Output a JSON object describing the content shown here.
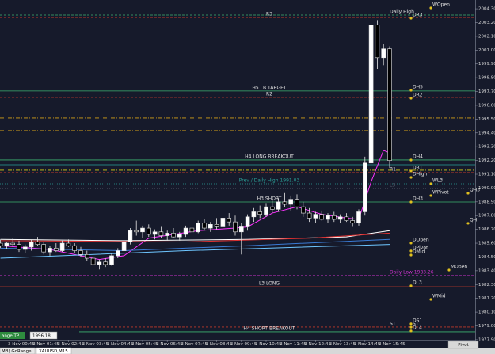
{
  "chart_data": {
    "type": "candlestick",
    "ylim": [
      1977.2,
      2005.0
    ],
    "yticks": [
      {
        "value": 2004.3,
        "label": "2004.30"
      },
      {
        "value": 2003.2,
        "label": "2003.20"
      },
      {
        "value": 2002.1,
        "label": "2002.10"
      },
      {
        "value": 2001,
        "label": "2001.00"
      },
      {
        "value": 1999.9,
        "label": "1999.90"
      },
      {
        "value": 1998.8,
        "label": "1998.80"
      },
      {
        "value": 1997.7,
        "label": "1997.70"
      },
      {
        "value": 1996.6,
        "label": "1996.60"
      },
      {
        "value": 1995.5,
        "label": "1995.50"
      },
      {
        "value": 1994.4,
        "label": "1994.40"
      },
      {
        "value": 1993.3,
        "label": "1993.30"
      },
      {
        "value": 1992.2,
        "label": "1992.20"
      },
      {
        "value": 1991.1,
        "label": "1991.10"
      },
      {
        "value": 1990,
        "label": "1990.00"
      },
      {
        "value": 1988.9,
        "label": "1988.90"
      },
      {
        "value": 1987.8,
        "label": "1987.80"
      },
      {
        "value": 1986.7,
        "label": "1986.70"
      },
      {
        "value": 1985.6,
        "label": "1985.60"
      },
      {
        "value": 1984.5,
        "label": "1984.50"
      },
      {
        "value": 1983.4,
        "label": "1983.40"
      },
      {
        "value": 1982.3,
        "label": "1982.30"
      },
      {
        "value": 1981.2,
        "label": "1981.20"
      },
      {
        "value": 1980.1,
        "label": "1980.10"
      },
      {
        "value": 1979,
        "label": "1979.00"
      },
      {
        "value": 1977.9,
        "label": "1977.90"
      }
    ],
    "xticks": [
      {
        "value": 3,
        "label": "3 Nov 00:45"
      },
      {
        "value": 7,
        "label": "3 Nov 01:45"
      },
      {
        "value": 11,
        "label": "3 Nov 02:45"
      },
      {
        "value": 15,
        "label": "3 Nov 03:45"
      },
      {
        "value": 19,
        "label": "3 Nov 04:45"
      },
      {
        "value": 23,
        "label": "3 Nov 05:45"
      },
      {
        "value": 27,
        "label": "3 Nov 06:45"
      },
      {
        "value": 31,
        "label": "3 Nov 07:45"
      },
      {
        "value": 35,
        "label": "3 Nov 08:45"
      },
      {
        "value": 39,
        "label": "3 Nov 09:45"
      },
      {
        "value": 43,
        "label": "3 Nov 10:45"
      },
      {
        "value": 47,
        "label": "3 Nov 11:45"
      },
      {
        "value": 51,
        "label": "3 Nov 12:45"
      },
      {
        "value": 55,
        "label": "3 Nov 13:45"
      },
      {
        "value": 59,
        "label": "3 Nov 14:45"
      },
      {
        "value": 63,
        "label": "3 Nov 15:45"
      }
    ],
    "candles": [
      [
        1985.6,
        1985.9,
        1985.2,
        1985.4
      ],
      [
        1985.4,
        1985.7,
        1985.1,
        1985.6
      ],
      [
        1985.6,
        1986.0,
        1985.3,
        1985.5
      ],
      [
        1985.5,
        1985.8,
        1984.9,
        1985.1
      ],
      [
        1985.1,
        1985.5,
        1984.8,
        1985.3
      ],
      [
        1985.3,
        1985.9,
        1985.0,
        1985.7
      ],
      [
        1985.7,
        1986.1,
        1985.4,
        1985.5
      ],
      [
        1985.5,
        1985.7,
        1984.7,
        1984.9
      ],
      [
        1984.9,
        1985.4,
        1984.6,
        1985.2
      ],
      [
        1985.2,
        1985.6,
        1984.9,
        1985.0
      ],
      [
        1985.0,
        1985.8,
        1984.9,
        1985.6
      ],
      [
        1985.6,
        1985.9,
        1985.3,
        1985.4
      ],
      [
        1985.4,
        1985.6,
        1984.8,
        1985.0
      ],
      [
        1985.0,
        1985.3,
        1984.5,
        1984.7
      ],
      [
        1984.7,
        1985.0,
        1984.2,
        1984.4
      ],
      [
        1984.4,
        1984.6,
        1983.6,
        1983.9
      ],
      [
        1983.9,
        1984.3,
        1983.5,
        1984.1
      ],
      [
        1984.1,
        1984.4,
        1983.7,
        1983.9
      ],
      [
        1983.9,
        1984.8,
        1983.8,
        1984.6
      ],
      [
        1984.6,
        1985.2,
        1984.4,
        1985.0
      ],
      [
        1985.0,
        1985.9,
        1984.8,
        1985.7
      ],
      [
        1985.7,
        1986.8,
        1985.5,
        1986.6
      ],
      [
        1986.6,
        1987.4,
        1986.2,
        1986.5
      ],
      [
        1986.5,
        1987.0,
        1986.0,
        1986.8
      ],
      [
        1986.8,
        1987.1,
        1986.1,
        1986.3
      ],
      [
        1986.3,
        1986.7,
        1985.9,
        1986.5
      ],
      [
        1986.5,
        1986.9,
        1986.0,
        1986.2
      ],
      [
        1986.2,
        1986.6,
        1985.8,
        1986.4
      ],
      [
        1986.4,
        1986.8,
        1986.0,
        1986.1
      ],
      [
        1986.1,
        1986.5,
        1985.8,
        1986.3
      ],
      [
        1986.3,
        1987.0,
        1986.1,
        1986.8
      ],
      [
        1986.8,
        1987.2,
        1986.3,
        1986.5
      ],
      [
        1986.5,
        1987.4,
        1986.4,
        1987.2
      ],
      [
        1987.2,
        1987.5,
        1986.6,
        1986.8
      ],
      [
        1986.8,
        1987.3,
        1986.5,
        1987.1
      ],
      [
        1987.1,
        1987.6,
        1986.7,
        1986.9
      ],
      [
        1986.9,
        1987.8,
        1986.7,
        1987.6
      ],
      [
        1987.6,
        1988.0,
        1987.0,
        1987.3
      ],
      [
        1987.3,
        1987.8,
        1986.2,
        1986.5
      ],
      [
        1986.5,
        1987.2,
        1984.7,
        1986.9
      ],
      [
        1986.9,
        1987.9,
        1986.6,
        1987.7
      ],
      [
        1987.7,
        1988.4,
        1987.3,
        1988.1
      ],
      [
        1988.1,
        1988.6,
        1987.6,
        1987.9
      ],
      [
        1987.9,
        1988.8,
        1987.7,
        1988.5
      ],
      [
        1988.5,
        1989.0,
        1988.0,
        1988.3
      ],
      [
        1988.3,
        1989.2,
        1988.1,
        1988.9
      ],
      [
        1988.9,
        1989.6,
        1988.5,
        1988.7
      ],
      [
        1988.7,
        1989.4,
        1988.2,
        1989.1
      ],
      [
        1989.1,
        1989.5,
        1988.3,
        1988.5
      ],
      [
        1988.5,
        1988.9,
        1987.7,
        1988.0
      ],
      [
        1988.0,
        1988.4,
        1987.3,
        1987.6
      ],
      [
        1987.6,
        1988.1,
        1987.2,
        1987.9
      ],
      [
        1987.9,
        1988.2,
        1987.4,
        1987.5
      ],
      [
        1987.5,
        1988.0,
        1987.2,
        1987.8
      ],
      [
        1987.8,
        1988.1,
        1987.3,
        1987.5
      ],
      [
        1987.5,
        1987.9,
        1987.2,
        1987.7
      ],
      [
        1987.7,
        1988.0,
        1987.3,
        1987.4
      ],
      [
        1987.4,
        1987.7,
        1986.9,
        1987.2
      ],
      [
        1987.2,
        1988.3,
        1987.0,
        1988.1
      ],
      [
        1988.1,
        1992.5,
        1987.8,
        1992.0
      ],
      [
        1992.0,
        2003.6,
        1991.8,
        2003.0
      ],
      [
        2003.0,
        2003.4,
        1999.5,
        2000.4
      ],
      [
        2000.4,
        2001.5,
        1999.8,
        2001.1
      ],
      [
        2001.1,
        2001.3,
        1991.6,
        1992.2
      ]
    ],
    "ma_lines": [
      {
        "color": "#ff33ff",
        "x": [
          0,
          8,
          16,
          20,
          24,
          32,
          38,
          40,
          44,
          48,
          52,
          56,
          58,
          60,
          62,
          63
        ],
        "values": [
          1985.4,
          1985.1,
          1984.3,
          1984.6,
          1986.0,
          1986.6,
          1986.8,
          1986.9,
          1988.0,
          1988.5,
          1987.9,
          1987.6,
          1987.5,
          1990.5,
          1993.0,
          1992.8
        ]
      },
      {
        "color": "#ffffff",
        "x": [
          0,
          20,
          40,
          56,
          63
        ],
        "values": [
          1985.9,
          1985.8,
          1985.9,
          1986.1,
          1986.6
        ]
      },
      {
        "color": "#e03030",
        "x": [
          0,
          30,
          50,
          63
        ],
        "values": [
          1985.8,
          1985.7,
          1986.0,
          1986.4
        ]
      },
      {
        "color": "#3a7bd5",
        "x": [
          0,
          20,
          40,
          63
        ],
        "values": [
          1985.2,
          1985.0,
          1985.4,
          1985.9
        ]
      },
      {
        "color": "#6ec6ff",
        "x": [
          0,
          30,
          63
        ],
        "values": [
          1984.4,
          1985.0,
          1985.5
        ]
      }
    ],
    "levels": [
      {
        "price": 2003.8,
        "color": "#3cb371",
        "dash": "dash",
        "label": "Daily High",
        "label_at": "right"
      },
      {
        "price": 2003.6,
        "color": "#c0392b",
        "dash": "dash",
        "label": "R3",
        "label_at": "center"
      },
      {
        "price": 1997.74,
        "color": "#3cb371",
        "dash": "solid",
        "label": "H5 LB TARGET",
        "label_at": "center"
      },
      {
        "price": 1997.23,
        "color": "#c0392b",
        "dash": "dash",
        "label": "R2",
        "label_at": "center"
      },
      {
        "price": 1995.59,
        "color": "#d4a017",
        "dash": "dashdot"
      },
      {
        "price": 1994.58,
        "color": "#d4a017",
        "dash": "dashdot"
      },
      {
        "price": 1992.24,
        "color": "#3cb371",
        "dash": "solid",
        "label": "H4 LONG BREAKOUT",
        "label_at": "center"
      },
      {
        "price": 1991.86,
        "color": "#2aa198",
        "dash": "solid"
      },
      {
        "price": 1991.42,
        "color": "#d4d017",
        "dash": "dashdot"
      },
      {
        "price": 1991.23,
        "color": "#c0392b",
        "dash": "dash",
        "label": "R1",
        "label_at": "right"
      },
      {
        "price": 1990.34,
        "color": "#2aa198",
        "dash": "dot",
        "label": "Prev / Daily High 1991.03",
        "label_at": "center"
      },
      {
        "price": 1989.96,
        "color": "#555a6a",
        "dash": "dot",
        "label": "L3",
        "label_at": "right"
      },
      {
        "price": 1988.89,
        "color": "#3cb371",
        "dash": "solid",
        "label": "H3 SHORT",
        "label_at": "center"
      },
      {
        "price": 1983.02,
        "color": "#cc33cc",
        "dash": "dash",
        "label": "Daily Low 1983.26",
        "label_at": "right"
      },
      {
        "price": 1982.13,
        "color": "#c0392b",
        "dash": "solid",
        "label": "L3 LONG",
        "label_at": "center"
      },
      {
        "price": 1978.91,
        "color": "#c0392b",
        "dash": "dash",
        "label": "S1",
        "label_at": "right"
      },
      {
        "price": 1978.53,
        "color": "#3cb371",
        "dash": "solid",
        "label": "H4 SHORT BREAKOUT",
        "label_at": "center"
      }
    ],
    "tags": [
      {
        "label": "WOpen",
        "price": 2004.62
      },
      {
        "label": "DR3",
        "price": 2003.8
      },
      {
        "label": "DH5",
        "price": 1998.05
      },
      {
        "label": "DR2",
        "price": 1997.42
      },
      {
        "label": "DH4",
        "price": 1992.49
      },
      {
        "label": "DR1",
        "price": 1991.61
      },
      {
        "label": "DHigh",
        "price": 1991.1
      },
      {
        "label": "WL3",
        "price": 1990.6
      },
      {
        "label": "WPivot",
        "price": 1989.65
      },
      {
        "label": "QH3",
        "price": 1989.84
      },
      {
        "label": "DH3",
        "price": 1989.14
      },
      {
        "label": "QH",
        "price": 1987.44
      },
      {
        "label": "DOpen",
        "price": 1985.86
      },
      {
        "label": "DPivot",
        "price": 1985.23
      },
      {
        "label": "DMid",
        "price": 1984.91
      },
      {
        "label": "MOpen",
        "price": 1983.71
      },
      {
        "label": "DL3",
        "price": 1982.45
      },
      {
        "label": "WMid",
        "price": 1981.37
      },
      {
        "label": "DS1",
        "price": 1979.42
      },
      {
        "label": "S1",
        "price": 1979.16
      },
      {
        "label": "DL4",
        "price": 1978.85
      }
    ]
  },
  "ui": {
    "range_button": "ange TP",
    "range_value": "1996.18",
    "tabs": [
      "MB) GoRange",
      "XAUUSD,M15"
    ],
    "pivot_button": "Pivot"
  }
}
